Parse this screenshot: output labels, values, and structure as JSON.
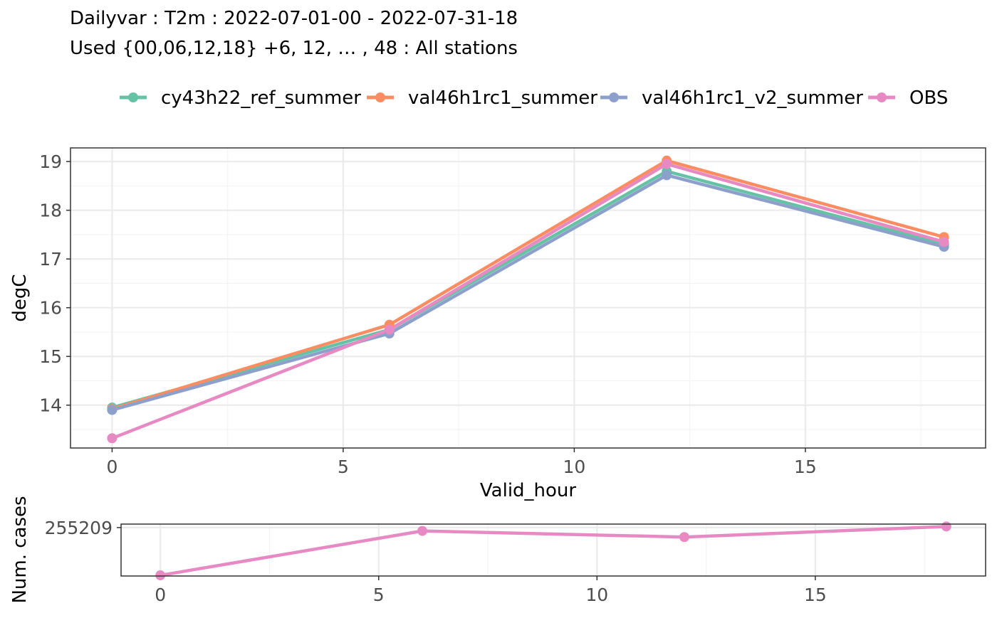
{
  "title_line1": "Dailyvar : T2m : 2022-07-01-00 - 2022-07-31-18",
  "title_line2": "Used {00,06,12,18} +6, 12, … , 48 : All stations",
  "legend": [
    {
      "name": "cy43h22_ref_summer",
      "color": "#66c2a5"
    },
    {
      "name": "val46h1rc1_summer",
      "color": "#fc8d62"
    },
    {
      "name": "val46h1rc1_v2_summer",
      "color": "#8da0cb"
    },
    {
      "name": "OBS",
      "color": "#e78ac3"
    }
  ],
  "chart_data": [
    {
      "type": "line",
      "xlabel": "Valid_hour",
      "ylabel": "degC",
      "xlim": [
        -0.9,
        18.9
      ],
      "ylim": [
        13.12,
        19.28
      ],
      "xticks": [
        0,
        5,
        10,
        15
      ],
      "yticks": [
        14,
        15,
        16,
        17,
        18,
        19
      ],
      "grid": true,
      "series": [
        {
          "name": "cy43h22_ref_summer",
          "color": "#66c2a5",
          "x": [
            0,
            6,
            12,
            18
          ],
          "y": [
            13.95,
            15.55,
            18.8,
            17.3
          ]
        },
        {
          "name": "val46h1rc1_summer",
          "color": "#fc8d62",
          "x": [
            0,
            6,
            12,
            18
          ],
          "y": [
            13.92,
            15.65,
            19.02,
            17.45
          ]
        },
        {
          "name": "val46h1rc1_v2_summer",
          "color": "#8da0cb",
          "x": [
            0,
            6,
            12,
            18
          ],
          "y": [
            13.9,
            15.47,
            18.72,
            17.25
          ]
        },
        {
          "name": "OBS",
          "color": "#e78ac3",
          "x": [
            0,
            6,
            12,
            18
          ],
          "y": [
            13.32,
            15.55,
            18.95,
            17.35
          ]
        }
      ]
    },
    {
      "type": "line",
      "xlabel": "",
      "ylabel": "Num. cases",
      "xlim": [
        -0.9,
        18.9
      ],
      "ylim": [
        254500,
        255260
      ],
      "xticks": [
        0,
        5,
        10,
        15
      ],
      "yticks": [
        255209
      ],
      "grid": true,
      "series": [
        {
          "name": "OBS",
          "color": "#e78ac3",
          "x": [
            0,
            6,
            12,
            18
          ],
          "y": [
            254510,
            255160,
            255070,
            255225
          ]
        }
      ]
    }
  ]
}
